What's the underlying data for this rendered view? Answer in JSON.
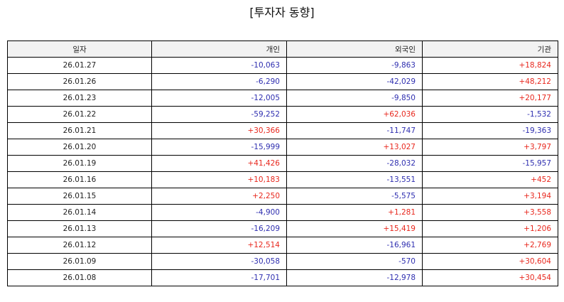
{
  "title": "[투자자 동향]",
  "colors": {
    "positive": "#e8281e",
    "negative": "#2f2fb0"
  },
  "headers": [
    "일자",
    "개인",
    "외국인",
    "기관"
  ],
  "rows": [
    [
      "26.01.27",
      "-10,063",
      "-9,863",
      "+18,824"
    ],
    [
      "26.01.26",
      "-6,290",
      "-42,029",
      "+48,212"
    ],
    [
      "26.01.23",
      "-12,005",
      "-9,850",
      "+20,177"
    ],
    [
      "26.01.22",
      "-59,252",
      "+62,036",
      "-1,532"
    ],
    [
      "26.01.21",
      "+30,366",
      "-11,747",
      "-19,363"
    ],
    [
      "26.01.20",
      "-15,999",
      "+13,027",
      "+3,797"
    ],
    [
      "26.01.19",
      "+41,426",
      "-28,032",
      "-15,957"
    ],
    [
      "26.01.16",
      "+10,183",
      "-13,551",
      "+452"
    ],
    [
      "26.01.15",
      "+2,250",
      "-5,575",
      "+3,194"
    ],
    [
      "26.01.14",
      "-4,900",
      "+1,281",
      "+3,558"
    ],
    [
      "26.01.13",
      "-16,209",
      "+15,419",
      "+1,206"
    ],
    [
      "26.01.12",
      "+12,514",
      "-16,961",
      "+2,769"
    ],
    [
      "26.01.09",
      "-30,058",
      "-570",
      "+30,604"
    ],
    [
      "26.01.08",
      "-17,701",
      "-12,978",
      "+30,454"
    ]
  ]
}
